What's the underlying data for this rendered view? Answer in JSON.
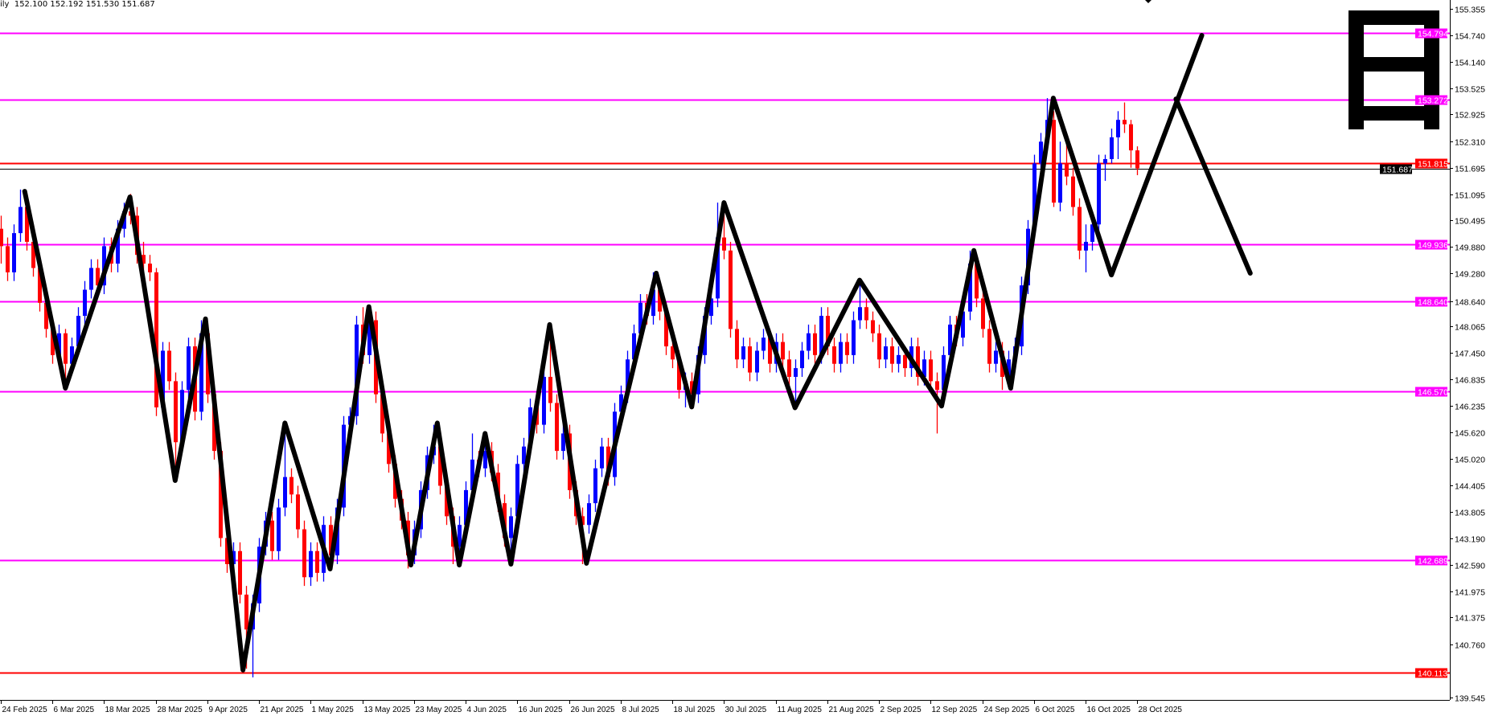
{
  "header": {
    "text": "ily  152.100 152.192 151.530 151.687"
  },
  "logo_text": "日",
  "chart_data": {
    "type": "candlestick",
    "colors": {
      "up": "#0000ff",
      "down": "#ff0000",
      "support_resistance": "#ff00ff",
      "key_level": "#ff0000",
      "current_price": "#000000",
      "zigzag": "#000000"
    },
    "y_ticks": [
      155.355,
      154.74,
      154.14,
      153.525,
      152.925,
      152.31,
      151.695,
      151.095,
      150.495,
      149.88,
      149.28,
      148.64,
      148.065,
      147.45,
      146.835,
      146.235,
      145.62,
      145.02,
      144.405,
      143.805,
      143.19,
      142.59,
      141.975,
      141.375,
      140.76,
      139.545
    ],
    "ylim": [
      139.545,
      155.355
    ],
    "x_tick_labels": [
      "24 Feb 2025",
      "6 Mar 2025",
      "18 Mar 2025",
      "28 Mar 2025",
      "9 Apr 2025",
      "21 Apr 2025",
      "1 May 2025",
      "13 May 2025",
      "23 May 2025",
      "4 Jun 2025",
      "16 Jun 2025",
      "26 Jun 2025",
      "8 Jul 2025",
      "18 Jul 2025",
      "30 Jul 2025",
      "11 Aug 2025",
      "21 Aug 2025",
      "2 Sep 2025",
      "12 Sep 2025",
      "24 Sep 2025",
      "6 Oct 2025",
      "16 Oct 2025",
      "28 Oct 2025"
    ],
    "bars_per_x_label": 8,
    "levels": [
      {
        "price": 154.794,
        "label": "154.794",
        "color": "#ff00ff"
      },
      {
        "price": 153.272,
        "label": "153.272",
        "color": "#ff00ff"
      },
      {
        "price": 151.815,
        "label": "151.815",
        "color": "#ff0000"
      },
      {
        "price": 151.687,
        "label": "151.687",
        "color": "#000000"
      },
      {
        "price": 149.936,
        "label": "149.936",
        "color": "#ff00ff"
      },
      {
        "price": 148.64,
        "label": "148.640",
        "color": "#ff00ff"
      },
      {
        "price": 146.57,
        "label": "146.570",
        "color": "#ff00ff"
      },
      {
        "price": 142.689,
        "label": "142.689",
        "color": "#ff00ff"
      },
      {
        "price": 140.113,
        "label": "140.113",
        "color": "#ff0000"
      }
    ],
    "zigzag": [
      [
        [
          3.7,
          151.16
        ],
        [
          10,
          146.64
        ],
        [
          20,
          151.03
        ],
        [
          27,
          144.52
        ],
        [
          31.7,
          148.23
        ],
        [
          37.5,
          140.17
        ],
        [
          44,
          145.84
        ],
        [
          51,
          142.49
        ],
        [
          57,
          148.51
        ],
        [
          63.5,
          142.58
        ],
        [
          67.6,
          145.84
        ],
        [
          71,
          142.58
        ],
        [
          75,
          145.6
        ],
        [
          79,
          142.6
        ],
        [
          85,
          148.1
        ],
        [
          90.7,
          142.62
        ],
        [
          101.5,
          149.28
        ],
        [
          107,
          146.21
        ],
        [
          112,
          150.9
        ],
        [
          123,
          146.19
        ],
        [
          133,
          149.12
        ],
        [
          145.7,
          146.23
        ],
        [
          150.7,
          149.8
        ],
        [
          156.4,
          146.64
        ],
        [
          163,
          153.3
        ],
        [
          172,
          149.24
        ],
        [
          186,
          154.74
        ]
      ],
      [
        [
          182,
          153.28
        ],
        [
          193.5,
          149.28
        ]
      ]
    ],
    "ohlc": [
      [
        150.3,
        150.6,
        149.5,
        149.9
      ],
      [
        149.9,
        150.1,
        149.1,
        149.3
      ],
      [
        149.3,
        150.4,
        149.1,
        150.2
      ],
      [
        150.2,
        151.2,
        150.0,
        150.8
      ],
      [
        150.8,
        151.0,
        149.8,
        150.0
      ],
      [
        150.0,
        150.3,
        149.2,
        149.4
      ],
      [
        149.4,
        149.6,
        148.4,
        148.6
      ],
      [
        148.6,
        148.8,
        147.8,
        148.0
      ],
      [
        148.0,
        148.2,
        147.2,
        147.4
      ],
      [
        147.4,
        148.1,
        147.2,
        147.9
      ],
      [
        147.9,
        148.0,
        146.6,
        147.2
      ],
      [
        147.2,
        147.8,
        147.0,
        147.6
      ],
      [
        147.6,
        148.5,
        147.4,
        148.3
      ],
      [
        148.3,
        149.1,
        148.1,
        148.9
      ],
      [
        148.9,
        149.6,
        148.7,
        149.4
      ],
      [
        149.4,
        149.6,
        148.8,
        149.0
      ],
      [
        149.0,
        150.1,
        148.8,
        149.9
      ],
      [
        149.9,
        150.1,
        149.3,
        149.5
      ],
      [
        149.5,
        150.5,
        149.3,
        150.3
      ],
      [
        150.3,
        150.9,
        150.1,
        150.7
      ],
      [
        150.7,
        151.1,
        150.4,
        150.6
      ],
      [
        150.6,
        150.8,
        149.5,
        149.7
      ],
      [
        149.7,
        150.0,
        149.3,
        149.5
      ],
      [
        149.5,
        149.7,
        149.1,
        149.3
      ],
      [
        149.3,
        149.4,
        146.0,
        146.2
      ],
      [
        146.2,
        147.7,
        146.0,
        147.5
      ],
      [
        147.5,
        147.7,
        146.6,
        146.8
      ],
      [
        146.8,
        147.0,
        144.5,
        145.4
      ],
      [
        145.4,
        146.8,
        145.2,
        146.6
      ],
      [
        146.6,
        147.8,
        146.4,
        147.6
      ],
      [
        147.6,
        147.8,
        145.9,
        146.1
      ],
      [
        146.1,
        148.2,
        145.9,
        147.9
      ],
      [
        147.9,
        148.1,
        146.3,
        146.5
      ],
      [
        146.5,
        146.7,
        145.0,
        145.2
      ],
      [
        145.2,
        145.4,
        143.0,
        143.2
      ],
      [
        143.2,
        143.4,
        142.4,
        142.6
      ],
      [
        142.6,
        143.1,
        142.2,
        142.9
      ],
      [
        142.9,
        143.1,
        141.7,
        141.9
      ],
      [
        141.9,
        142.1,
        140.2,
        141.1
      ],
      [
        141.1,
        141.9,
        140.0,
        141.7
      ],
      [
        141.7,
        143.2,
        141.5,
        143.0
      ],
      [
        143.0,
        143.8,
        142.8,
        143.6
      ],
      [
        143.6,
        143.8,
        142.7,
        142.9
      ],
      [
        142.9,
        144.1,
        142.7,
        143.9
      ],
      [
        143.9,
        145.8,
        143.7,
        144.6
      ],
      [
        144.6,
        144.8,
        144.0,
        144.2
      ],
      [
        144.2,
        144.4,
        143.2,
        143.4
      ],
      [
        143.4,
        143.6,
        142.1,
        142.3
      ],
      [
        142.3,
        143.1,
        142.1,
        142.9
      ],
      [
        142.9,
        143.1,
        142.2,
        142.4
      ],
      [
        142.4,
        143.7,
        142.2,
        143.5
      ],
      [
        143.5,
        143.7,
        142.5,
        142.8
      ],
      [
        142.8,
        144.1,
        142.6,
        143.9
      ],
      [
        143.9,
        146.0,
        143.7,
        145.8
      ],
      [
        145.8,
        146.2,
        145.6,
        146.0
      ],
      [
        146.0,
        148.3,
        145.8,
        148.1
      ],
      [
        148.1,
        148.5,
        147.2,
        147.4
      ],
      [
        147.4,
        148.5,
        147.2,
        148.2
      ],
      [
        148.2,
        148.4,
        146.3,
        146.5
      ],
      [
        146.5,
        146.7,
        145.4,
        145.6
      ],
      [
        145.6,
        145.8,
        144.7,
        144.9
      ],
      [
        144.9,
        145.1,
        143.9,
        144.1
      ],
      [
        144.1,
        144.3,
        143.4,
        143.6
      ],
      [
        143.6,
        143.8,
        142.5,
        142.8
      ],
      [
        142.8,
        143.6,
        142.6,
        143.4
      ],
      [
        143.4,
        144.5,
        143.2,
        144.3
      ],
      [
        144.3,
        145.3,
        144.1,
        145.1
      ],
      [
        145.1,
        145.8,
        144.9,
        145.3
      ],
      [
        145.3,
        145.5,
        144.2,
        144.4
      ],
      [
        144.4,
        144.6,
        143.5,
        143.7
      ],
      [
        143.7,
        143.9,
        142.6,
        143.0
      ],
      [
        143.0,
        143.7,
        142.6,
        143.5
      ],
      [
        143.5,
        144.5,
        143.3,
        144.3
      ],
      [
        144.3,
        145.6,
        144.1,
        145.0
      ],
      [
        145.0,
        145.2,
        144.6,
        144.8
      ],
      [
        144.8,
        145.6,
        144.6,
        145.2
      ],
      [
        145.2,
        145.4,
        144.5,
        144.7
      ],
      [
        144.7,
        144.9,
        143.8,
        144.0
      ],
      [
        144.0,
        144.2,
        143.0,
        143.2
      ],
      [
        143.2,
        143.9,
        142.6,
        143.7
      ],
      [
        143.7,
        145.1,
        143.5,
        144.9
      ],
      [
        144.9,
        145.5,
        144.7,
        145.3
      ],
      [
        145.3,
        146.4,
        145.1,
        146.2
      ],
      [
        146.2,
        146.4,
        145.6,
        145.8
      ],
      [
        145.8,
        147.1,
        145.6,
        146.9
      ],
      [
        146.9,
        148.1,
        146.1,
        146.3
      ],
      [
        146.3,
        146.5,
        145.0,
        145.2
      ],
      [
        145.2,
        145.8,
        145.0,
        145.6
      ],
      [
        145.6,
        145.8,
        144.1,
        144.3
      ],
      [
        144.3,
        144.5,
        143.5,
        143.7
      ],
      [
        143.7,
        143.9,
        142.6,
        143.5
      ],
      [
        143.5,
        144.2,
        143.3,
        144.0
      ],
      [
        144.0,
        145.0,
        143.8,
        144.8
      ],
      [
        144.8,
        145.5,
        144.6,
        145.3
      ],
      [
        145.3,
        145.5,
        144.4,
        144.6
      ],
      [
        144.6,
        146.3,
        144.4,
        146.1
      ],
      [
        146.1,
        146.7,
        145.9,
        146.5
      ],
      [
        146.5,
        147.5,
        146.3,
        147.3
      ],
      [
        147.3,
        148.1,
        147.1,
        147.9
      ],
      [
        147.9,
        148.8,
        147.7,
        148.6
      ],
      [
        148.6,
        148.8,
        148.1,
        148.3
      ],
      [
        148.3,
        149.3,
        148.1,
        148.9
      ],
      [
        148.9,
        149.1,
        148.2,
        148.4
      ],
      [
        148.4,
        148.6,
        147.4,
        147.6
      ],
      [
        147.6,
        147.8,
        147.1,
        147.3
      ],
      [
        147.3,
        147.5,
        146.4,
        146.6
      ],
      [
        146.6,
        147.0,
        146.2,
        146.8
      ],
      [
        146.8,
        147.0,
        146.2,
        146.5
      ],
      [
        146.5,
        147.6,
        146.3,
        147.4
      ],
      [
        147.4,
        148.5,
        147.2,
        148.3
      ],
      [
        148.3,
        148.9,
        148.1,
        148.7
      ],
      [
        148.7,
        150.9,
        148.5,
        150.1
      ],
      [
        150.1,
        150.9,
        149.6,
        149.8
      ],
      [
        149.8,
        150.0,
        147.8,
        148.0
      ],
      [
        148.0,
        148.2,
        147.1,
        147.3
      ],
      [
        147.3,
        147.8,
        147.1,
        147.6
      ],
      [
        147.6,
        147.8,
        146.8,
        147.0
      ],
      [
        147.0,
        147.7,
        146.8,
        147.5
      ],
      [
        147.5,
        148.0,
        147.3,
        147.8
      ],
      [
        147.8,
        148.0,
        147.0,
        147.2
      ],
      [
        147.2,
        147.9,
        147.0,
        147.7
      ],
      [
        147.7,
        147.9,
        147.1,
        147.3
      ],
      [
        147.3,
        147.5,
        146.7,
        146.9
      ],
      [
        146.9,
        147.3,
        146.2,
        147.1
      ],
      [
        147.1,
        147.7,
        146.9,
        147.5
      ],
      [
        147.5,
        148.1,
        147.3,
        147.9
      ],
      [
        147.9,
        148.1,
        147.2,
        147.4
      ],
      [
        147.4,
        148.5,
        147.2,
        148.3
      ],
      [
        148.3,
        148.5,
        147.4,
        147.6
      ],
      [
        147.6,
        147.8,
        147.0,
        147.2
      ],
      [
        147.2,
        147.9,
        147.0,
        147.7
      ],
      [
        147.7,
        147.9,
        147.2,
        147.4
      ],
      [
        147.4,
        148.4,
        147.2,
        148.2
      ],
      [
        148.2,
        149.1,
        148.0,
        148.5
      ],
      [
        148.5,
        148.7,
        148.0,
        148.2
      ],
      [
        148.2,
        148.4,
        147.7,
        147.9
      ],
      [
        147.9,
        148.1,
        147.1,
        147.3
      ],
      [
        147.3,
        147.8,
        147.1,
        147.6
      ],
      [
        147.6,
        147.8,
        147.0,
        147.2
      ],
      [
        147.2,
        147.6,
        147.0,
        147.4
      ],
      [
        147.4,
        147.6,
        146.9,
        147.1
      ],
      [
        147.1,
        147.8,
        146.9,
        147.6
      ],
      [
        147.6,
        147.8,
        146.7,
        146.9
      ],
      [
        146.9,
        147.5,
        146.7,
        147.3
      ],
      [
        147.3,
        147.5,
        146.6,
        146.8
      ],
      [
        146.8,
        147.0,
        145.6,
        146.6
      ],
      [
        146.6,
        147.6,
        146.4,
        147.4
      ],
      [
        147.4,
        148.3,
        147.2,
        148.1
      ],
      [
        148.1,
        148.3,
        147.6,
        147.8
      ],
      [
        147.8,
        148.6,
        147.6,
        148.4
      ],
      [
        148.4,
        149.8,
        148.2,
        149.5
      ],
      [
        149.5,
        149.7,
        148.5,
        148.7
      ],
      [
        148.7,
        148.9,
        147.8,
        148.0
      ],
      [
        148.0,
        148.2,
        147.0,
        147.2
      ],
      [
        147.2,
        147.7,
        147.0,
        147.5
      ],
      [
        147.5,
        147.7,
        146.6,
        146.9
      ],
      [
        146.9,
        147.5,
        146.7,
        147.3
      ],
      [
        147.3,
        147.8,
        147.1,
        147.6
      ],
      [
        147.6,
        149.2,
        147.4,
        149.0
      ],
      [
        149.0,
        150.5,
        148.8,
        150.3
      ],
      [
        150.3,
        152.0,
        150.1,
        151.8
      ],
      [
        151.8,
        152.5,
        151.6,
        152.3
      ],
      [
        152.3,
        153.3,
        152.1,
        152.8
      ],
      [
        152.8,
        153.0,
        150.8,
        150.9
      ],
      [
        150.9,
        152.3,
        150.7,
        151.8
      ],
      [
        151.8,
        152.3,
        151.3,
        151.5
      ],
      [
        151.5,
        151.7,
        150.6,
        150.8
      ],
      [
        150.8,
        151.0,
        149.6,
        149.8
      ],
      [
        149.8,
        150.4,
        149.3,
        150.0
      ],
      [
        150.0,
        150.6,
        149.8,
        150.4
      ],
      [
        150.4,
        152.0,
        150.2,
        151.8
      ],
      [
        151.8,
        152.0,
        151.4,
        151.9
      ],
      [
        151.9,
        152.6,
        151.8,
        152.4
      ],
      [
        152.4,
        153.0,
        151.9,
        152.8
      ],
      [
        152.8,
        153.2,
        152.5,
        152.7
      ],
      [
        152.7,
        152.8,
        151.7,
        152.1
      ],
      [
        152.1,
        152.192,
        151.53,
        151.687
      ]
    ]
  }
}
